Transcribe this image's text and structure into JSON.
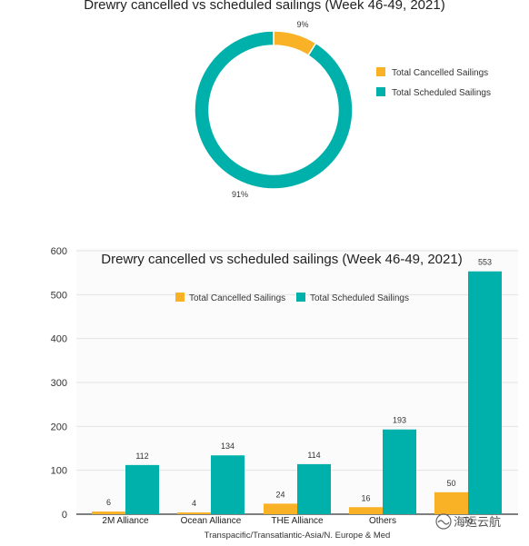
{
  "colors": {
    "cancelled": "#F9B125",
    "scheduled": "#00B1AB",
    "grid": "#e3e3e3",
    "axis": "#333333"
  },
  "chart_data": [
    {
      "type": "pie",
      "title": "Drewry cancelled vs scheduled sailings (Week 46-49, 2021)",
      "labels": [
        "Total Cancelled Sailings",
        "Total Scheduled Sailings"
      ],
      "values": [
        9,
        91
      ],
      "value_labels": [
        "9%",
        "91%"
      ],
      "donut": true,
      "legend": "right"
    },
    {
      "type": "bar",
      "title": "Drewry cancelled vs scheduled sailings (Week 46-49, 2021)",
      "categories": [
        "2M Alliance",
        "Ocean Alliance",
        "THE Alliance",
        "Others",
        "Total"
      ],
      "category_labels_shown": [
        "2M Alliance",
        "Ocean Alliance",
        "THE Alliance",
        "Others",
        "To"
      ],
      "series": [
        {
          "name": "Total Cancelled Sailings",
          "values": [
            6,
            4,
            24,
            16,
            50
          ]
        },
        {
          "name": "Total Scheduled Sailings",
          "values": [
            112,
            134,
            114,
            193,
            553
          ]
        }
      ],
      "xlabel": "Transpacific/Transatlantic-Asia/N. Europe & Med",
      "ylabel": "",
      "ylim": [
        0,
        600
      ],
      "yticks": [
        0,
        100,
        200,
        300,
        400,
        500,
        600
      ],
      "grid": true,
      "legend": "top"
    }
  ],
  "watermark": "海运云航"
}
